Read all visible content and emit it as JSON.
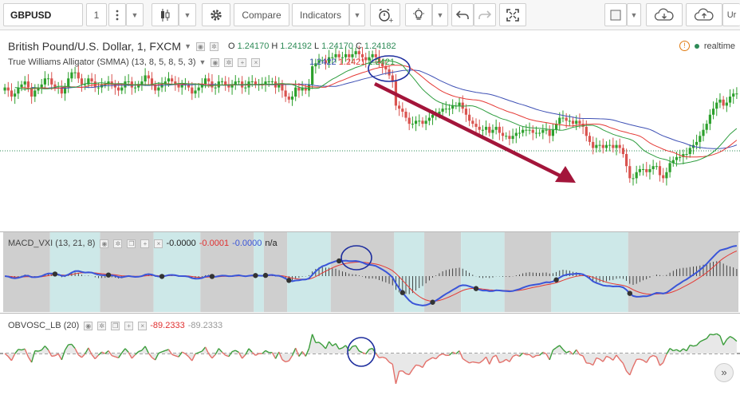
{
  "toolbar": {
    "symbol": "GBPUSD",
    "interval": "1",
    "compare_label": "Compare",
    "indicators_label": "Indicators",
    "right_cut_label": "Ur",
    "icons": [
      "candle-icon",
      "gear-icon",
      "alert-icon",
      "bulb-icon",
      "undo-icon",
      "redo-icon",
      "fullscreen-icon",
      "square-icon",
      "cloud-down-icon",
      "cloud-up-icon"
    ]
  },
  "legend": {
    "title": "British Pound/U.S. Dollar, 1, FXCM",
    "o_label": "O",
    "o_value": "1.24170",
    "h_label": "H",
    "h_value": "1.24192",
    "l_label": "L",
    "l_value": "1.24170",
    "c_label": "C",
    "c_value": "1.24182",
    "alligator_name": "True Williams Alligator (SMMA) (13, 8, 5, 8, 5, 3)",
    "alligator_values": [
      "1.2422",
      "1.2421",
      "1.2421"
    ],
    "realtime": "realtime"
  },
  "macd_legend": {
    "name": "MACD_VXI (13, 21, 8)",
    "v1": "-0.0000",
    "v2": "-0.0001",
    "v3": "-0.0000",
    "v4": "n/a"
  },
  "obv_legend": {
    "name": "OBVOSC_LB (20)",
    "v1": "-89.2333",
    "v2": "-89.2333"
  },
  "colors": {
    "up": "#2ca02c",
    "down": "#d9534f",
    "jaw": "#3f51b5",
    "teeth": "#e53935",
    "lips": "#2e9d3f",
    "arrow": "#a3153a",
    "macd_line": "#3a55d8",
    "signal_line": "#e53935",
    "shade_gray": "#cfcfcf",
    "shade_teal": "#cde8e8",
    "obv_up": "#3a9d3a",
    "obv_down": "#e3706a",
    "circle": "#1e2e9e"
  },
  "chart_data": [
    {
      "type": "candlestick",
      "title": "British Pound/U.S. Dollar, 1, FXCM",
      "ylim": [
        1.237,
        1.2432
      ],
      "x": [
        0,
        1,
        2,
        3,
        4,
        5,
        6,
        7,
        8,
        9,
        10,
        11,
        12,
        13,
        14,
        15,
        16,
        17,
        18,
        19,
        20,
        21,
        22,
        23,
        24,
        25,
        26,
        27,
        28,
        29,
        30,
        31,
        32,
        33,
        34,
        35,
        36,
        37,
        38,
        39,
        40,
        41,
        42,
        43,
        44,
        45,
        46,
        47,
        48,
        49,
        50,
        51,
        52,
        53,
        54,
        55,
        56,
        57,
        58,
        59,
        60,
        61,
        62,
        63,
        64,
        65,
        66,
        67,
        68,
        69,
        70,
        71,
        72,
        73,
        74,
        75,
        76,
        77,
        78,
        79,
        80,
        81,
        82,
        83,
        84,
        85,
        86,
        87,
        88,
        89,
        90,
        91,
        92,
        93,
        94,
        95,
        96,
        97,
        98,
        99,
        100,
        101,
        102,
        103,
        104,
        105,
        106,
        107,
        108,
        109,
        110,
        111,
        112,
        113,
        114,
        115,
        116,
        117,
        118,
        119,
        120,
        121,
        122,
        123,
        124,
        125,
        126,
        127,
        128,
        129,
        130,
        131,
        132,
        133,
        134,
        135,
        136,
        137,
        138,
        139,
        140,
        141,
        142,
        143,
        144,
        145,
        146,
        147,
        148,
        149,
        150,
        151,
        152,
        153,
        154,
        155,
        156,
        157,
        158,
        159,
        160,
        161,
        162,
        163,
        164,
        165,
        166,
        167,
        168,
        169,
        170,
        171,
        172,
        173,
        174,
        175,
        176,
        177,
        178,
        179,
        180,
        181,
        182,
        183,
        184,
        185,
        186,
        187,
        188,
        189,
        190,
        191,
        192,
        193,
        194,
        195,
        196,
        197,
        198,
        199,
        200,
        201,
        202,
        203,
        204,
        205,
        206,
        207,
        208,
        209,
        210,
        211,
        212,
        213,
        214,
        215,
        216,
        217,
        218,
        219
      ],
      "close": [
        1.2416,
        1.2415,
        1.2413,
        1.2414,
        1.2416,
        1.2417,
        1.2418,
        1.2416,
        1.2413,
        1.2415,
        1.2416,
        1.2417,
        1.2419,
        1.2419,
        1.2417,
        1.2416,
        1.2416,
        1.2414,
        1.2416,
        1.2419,
        1.2421,
        1.2421,
        1.2419,
        1.2417,
        1.2417,
        1.2419,
        1.2418,
        1.2416,
        1.2416,
        1.2417,
        1.2417,
        1.2418,
        1.2417,
        1.2416,
        1.2415,
        1.2416,
        1.2418,
        1.2418,
        1.2416,
        1.2416,
        1.2417,
        1.2418,
        1.242,
        1.2419,
        1.2417,
        1.2415,
        1.2416,
        1.2417,
        1.2418,
        1.2419,
        1.2418,
        1.2417,
        1.2416,
        1.2417,
        1.2417,
        1.2416,
        1.2414,
        1.2415,
        1.2416,
        1.2417,
        1.2419,
        1.2418,
        1.2416,
        1.2416,
        1.2418,
        1.2418,
        1.2417,
        1.2416,
        1.2417,
        1.2418,
        1.2418,
        1.2416,
        1.2416,
        1.2418,
        1.2418,
        1.2417,
        1.2417,
        1.2417,
        1.2418,
        1.2418,
        1.2418,
        1.2416,
        1.2417,
        1.2415,
        1.2413,
        1.2412,
        1.2413,
        1.2416,
        1.2415,
        1.2416,
        1.2415,
        1.2417,
        1.2423,
        1.2424,
        1.2425,
        1.2425,
        1.2424,
        1.2426,
        1.2426,
        1.2427,
        1.2426,
        1.2426,
        1.2427,
        1.2426,
        1.2427,
        1.2428,
        1.2427,
        1.2426,
        1.2425,
        1.2426,
        1.2427,
        1.2426,
        1.2424,
        1.2423,
        1.2422,
        1.242,
        1.2418,
        1.241,
        1.2409,
        1.2408,
        1.2406,
        1.2404,
        1.2404,
        1.2405,
        1.2405,
        1.2404,
        1.2405,
        1.2406,
        1.2407,
        1.2407,
        1.2408,
        1.2409,
        1.2409,
        1.2409,
        1.241,
        1.241,
        1.2411,
        1.2409,
        1.2407,
        1.2405,
        1.2404,
        1.2403,
        1.2402,
        1.2402,
        1.2403,
        1.2401,
        1.2402,
        1.2403,
        1.2401,
        1.24,
        1.24,
        1.2399,
        1.24,
        1.2401,
        1.2401,
        1.2402,
        1.2402,
        1.2402,
        1.2401,
        1.2401,
        1.2401,
        1.2402,
        1.2402,
        1.24,
        1.2402,
        1.2404,
        1.2406,
        1.2406,
        1.2405,
        1.2405,
        1.2404,
        1.2405,
        1.2404,
        1.2403,
        1.24,
        1.2398,
        1.2396,
        1.2397,
        1.2397,
        1.2396,
        1.2397,
        1.2397,
        1.2396,
        1.2397,
        1.2396,
        1.2394,
        1.239,
        1.2386,
        1.2386,
        1.2388,
        1.2389,
        1.2389,
        1.2388,
        1.2389,
        1.239,
        1.239,
        1.2387,
        1.2386,
        1.2388,
        1.2391,
        1.2392,
        1.2393,
        1.2393,
        1.2394,
        1.2394,
        1.2396,
        1.2397,
        1.2398,
        1.24,
        1.2402,
        1.2404,
        1.2407,
        1.2409,
        1.2411,
        1.2412,
        1.241,
        1.2411,
        1.2413,
        1.2414,
        1.2414
      ],
      "alligator_jaw": "smoothed average 13",
      "alligator_teeth": "smoothed average 8",
      "alligator_lips": "smoothed average 5",
      "annotations": [
        "circle around alligator crossover",
        "downward arrow trend line"
      ]
    },
    {
      "type": "line",
      "name": "MACD_VXI (13, 21, 8)",
      "ylim": [
        -1.1,
        1.1
      ],
      "series_macd_note": "blue MACD line with black histogram and red signal line",
      "shaded_regions": [
        {
          "from": 0,
          "to": 14,
          "shade": "gray"
        },
        {
          "from": 14,
          "to": 29,
          "shade": "teal"
        },
        {
          "from": 29,
          "to": 45,
          "shade": "gray"
        },
        {
          "from": 45,
          "to": 59,
          "shade": "teal"
        },
        {
          "from": 59,
          "to": 75,
          "shade": "gray"
        },
        {
          "from": 75,
          "to": 78,
          "shade": "teal"
        },
        {
          "from": 78,
          "to": 85,
          "shade": "gray"
        },
        {
          "from": 85,
          "to": 98,
          "shade": "teal"
        },
        {
          "from": 98,
          "to": 117,
          "shade": "gray"
        },
        {
          "from": 117,
          "to": 126,
          "shade": "teal"
        },
        {
          "from": 126,
          "to": 137,
          "shade": "gray"
        },
        {
          "from": 137,
          "to": 150,
          "shade": "teal"
        },
        {
          "from": 150,
          "to": 164,
          "shade": "gray"
        },
        {
          "from": 164,
          "to": 187,
          "shade": "teal"
        },
        {
          "from": 187,
          "to": 220,
          "shade": "gray"
        }
      ],
      "macd_marker_points": [
        15,
        31,
        47,
        62,
        75,
        78,
        85,
        100,
        119,
        128,
        141,
        165,
        187
      ]
    },
    {
      "type": "line",
      "name": "OBVOSC_LB (20)",
      "ylim": [
        -1.2,
        1.2
      ]
    }
  ]
}
